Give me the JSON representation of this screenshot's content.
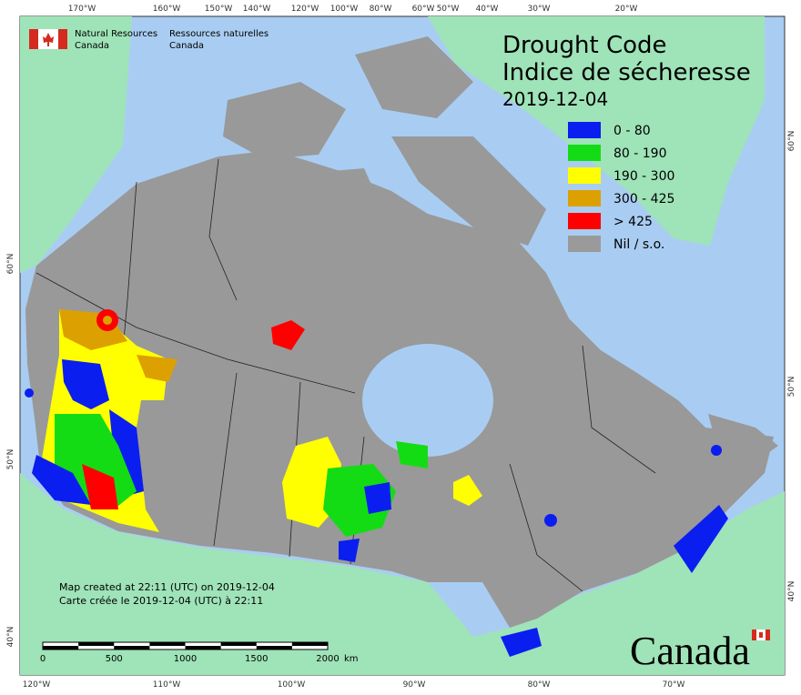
{
  "header": {
    "department_en": [
      "Natural Resources",
      "Canada"
    ],
    "department_fr": [
      "Ressources naturelles",
      "Canada"
    ]
  },
  "title": {
    "line1": "Drought Code",
    "line2": "Indice de sécheresse",
    "date": "2019-12-04"
  },
  "legend": [
    {
      "label": "0 - 80",
      "color": "#0a1ef0"
    },
    {
      "label": "80 - 190",
      "color": "#14dc14"
    },
    {
      "label": "190 - 300",
      "color": "#ffff00"
    },
    {
      "label": "300 - 425",
      "color": "#dca000"
    },
    {
      "label": "> 425",
      "color": "#ff0000"
    },
    {
      "label": "Nil / s.o.",
      "color": "#9a9a9a"
    }
  ],
  "graticule": {
    "top": [
      "170°W",
      "160°W",
      "150°W",
      "140°W",
      "120°W",
      "100°W",
      "80°W",
      "60°W",
      "50°W",
      "40°W",
      "30°W",
      "20°W"
    ],
    "bottom": [
      "120°W",
      "110°W",
      "100°W",
      "90°W",
      "80°W",
      "70°W"
    ],
    "left": [
      "60°N",
      "50°N",
      "40°N"
    ],
    "right": [
      "60°N",
      "50°N",
      "40°N"
    ]
  },
  "footer": {
    "created_en": "Map created at 22:11 (UTC) on 2019-12-04",
    "created_fr": "Carte créée le 2019-12-04 (UTC) à 22:11"
  },
  "scale_bar": {
    "ticks": [
      "0",
      "500",
      "1000",
      "1500",
      "2000"
    ],
    "unit": "km"
  },
  "wordmark": "Canada"
}
